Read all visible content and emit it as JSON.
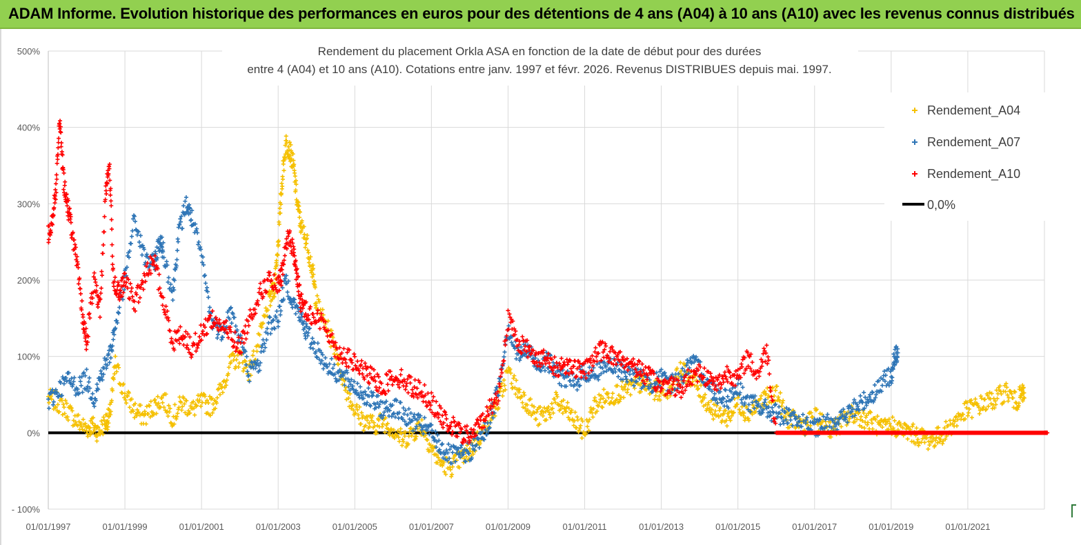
{
  "banner": {
    "title": "ADAM Informe. Evolution historique des performances en euros pour des détentions de 4 ans (A04) à 10 ans (A10) avec les revenus connus distribués"
  },
  "chart_data": {
    "type": "scatter",
    "title_line1": "Rendement du placement Orkla ASA en fonction de la date de début pour des durées",
    "title_line2": "entre 4 (A04) et 10 ans (A10).  Cotations entre janv. 1997 et févr. 2026. Revenus DISTRIBUES depuis mai. 1997.",
    "xlabel": "",
    "ylabel": "",
    "x_range": [
      1997.0,
      2023.0
    ],
    "ylim": [
      -100,
      500
    ],
    "yticks": [
      -100,
      0,
      100,
      200,
      300,
      400,
      500
    ],
    "ytick_labels": [
      "- 100%",
      "0%",
      "100%",
      "200%",
      "300%",
      "400%",
      "500%"
    ],
    "xticks": [
      1997,
      1999,
      2001,
      2003,
      2005,
      2007,
      2009,
      2011,
      2013,
      2015,
      2017,
      2019,
      2021
    ],
    "xtick_labels": [
      "01/01/1997",
      "01/01/1999",
      "01/01/2001",
      "01/01/2003",
      "01/01/2005",
      "01/01/2007",
      "01/01/2009",
      "01/01/2011",
      "01/01/2013",
      "01/01/2015",
      "01/01/2017",
      "01/01/2019",
      "01/01/2021"
    ],
    "grid": true,
    "legend_position": "top-right",
    "series": [
      {
        "name": "Rendement_A04",
        "color": "#f5c000",
        "marker": "plus",
        "x": [
          1997.0,
          1997.25,
          1997.5,
          1997.75,
          1998.0,
          1998.15,
          1998.3,
          1998.5,
          1998.6,
          1998.75,
          1999.0,
          1999.25,
          1999.5,
          1999.75,
          2000.0,
          2000.25,
          2000.5,
          2000.75,
          2001.0,
          2001.25,
          2001.5,
          2001.75,
          2002.0,
          2002.25,
          2002.5,
          2002.75,
          2002.9,
          2003.0,
          2003.1,
          2003.2,
          2003.3,
          2003.4,
          2003.5,
          2003.6,
          2003.75,
          2003.9,
          2004.0,
          2004.25,
          2004.5,
          2004.75,
          2005.0,
          2005.25,
          2005.5,
          2005.75,
          2006.0,
          2006.25,
          2006.5,
          2006.75,
          2007.0,
          2007.25,
          2007.5,
          2007.75,
          2008.0,
          2008.25,
          2008.5,
          2008.75,
          2009.0,
          2009.25,
          2009.5,
          2009.75,
          2010.0,
          2010.25,
          2010.5,
          2010.75,
          2011.0,
          2011.25,
          2011.5,
          2011.75,
          2012.0,
          2012.25,
          2012.5,
          2012.75,
          2013.0,
          2013.25,
          2013.5,
          2013.75,
          2014.0,
          2014.25,
          2014.5,
          2014.75,
          2015.0,
          2015.25,
          2015.5,
          2015.75,
          2016.0,
          2016.25,
          2016.5,
          2016.75,
          2017.0,
          2017.25,
          2017.5,
          2017.75,
          2018.0,
          2018.25,
          2018.5,
          2018.75,
          2019.0,
          2019.25,
          2019.5,
          2019.75,
          2020.0,
          2020.25,
          2020.5,
          2020.75,
          2021.0,
          2021.25,
          2021.5,
          2021.75,
          2022.0,
          2022.25,
          2022.4
        ],
        "y": [
          45,
          40,
          30,
          15,
          5,
          10,
          0,
          15,
          20,
          90,
          50,
          30,
          20,
          35,
          45,
          20,
          40,
          30,
          40,
          35,
          55,
          90,
          100,
          80,
          120,
          170,
          190,
          250,
          330,
          380,
          370,
          350,
          300,
          270,
          250,
          210,
          170,
          140,
          110,
          60,
          30,
          15,
          10,
          15,
          5,
          -10,
          0,
          10,
          -20,
          -40,
          -45,
          -35,
          -25,
          -5,
          20,
          40,
          80,
          55,
          40,
          20,
          25,
          40,
          30,
          15,
          0,
          35,
          45,
          50,
          55,
          60,
          65,
          55,
          55,
          60,
          80,
          75,
          55,
          35,
          25,
          20,
          40,
          25,
          35,
          45,
          55,
          20,
          15,
          10,
          20,
          10,
          5,
          15,
          25,
          20,
          15,
          5,
          10,
          5,
          0,
          -5,
          -10,
          -5,
          5,
          20,
          30,
          35,
          40,
          45,
          55,
          40,
          50
        ]
      },
      {
        "name": "Rendement_A07",
        "color": "#2e75b6",
        "marker": "plus",
        "x": [
          1997.0,
          1997.25,
          1997.5,
          1997.75,
          1998.0,
          1998.2,
          1998.4,
          1998.6,
          1998.75,
          1999.0,
          1999.25,
          1999.5,
          1999.75,
          1999.9,
          2000.0,
          2000.25,
          2000.4,
          2000.6,
          2000.75,
          2001.0,
          2001.25,
          2001.5,
          2001.75,
          2002.0,
          2002.25,
          2002.5,
          2002.75,
          2003.0,
          2003.2,
          2003.4,
          2003.6,
          2003.75,
          2004.0,
          2004.25,
          2004.5,
          2004.75,
          2005.0,
          2005.25,
          2005.5,
          2005.75,
          2006.0,
          2006.25,
          2006.5,
          2006.75,
          2007.0,
          2007.25,
          2007.5,
          2007.75,
          2008.0,
          2008.25,
          2008.5,
          2008.75,
          2009.0,
          2009.25,
          2009.5,
          2009.75,
          2010.0,
          2010.25,
          2010.5,
          2010.75,
          2011.0,
          2011.25,
          2011.5,
          2011.75,
          2012.0,
          2012.25,
          2012.5,
          2012.75,
          2013.0,
          2013.25,
          2013.5,
          2013.75,
          2014.0,
          2014.25,
          2014.5,
          2014.75,
          2015.0,
          2015.25,
          2015.5,
          2015.75,
          2016.0,
          2016.25,
          2016.5,
          2016.75,
          2017.0,
          2017.25,
          2017.5,
          2017.75,
          2018.0,
          2018.25,
          2018.5,
          2018.75,
          2019.0,
          2019.1
        ],
        "y": [
          40,
          55,
          70,
          60,
          70,
          45,
          80,
          100,
          140,
          200,
          280,
          230,
          220,
          250,
          240,
          180,
          260,
          300,
          280,
          230,
          150,
          130,
          160,
          120,
          80,
          90,
          140,
          150,
          200,
          170,
          150,
          130,
          110,
          90,
          80,
          70,
          60,
          50,
          40,
          30,
          35,
          25,
          15,
          10,
          0,
          -20,
          -30,
          -30,
          -25,
          -10,
          10,
          60,
          140,
          100,
          110,
          90,
          95,
          80,
          70,
          65,
          80,
          75,
          90,
          85,
          80,
          75,
          70,
          65,
          70,
          65,
          70,
          90,
          85,
          60,
          50,
          45,
          60,
          40,
          35,
          30,
          25,
          20,
          15,
          10,
          5,
          10,
          15,
          20,
          30,
          40,
          50,
          65,
          75,
          100
        ]
      },
      {
        "name": "Rendement_A10",
        "color": "#ff0000",
        "marker": "plus",
        "x": [
          1997.0,
          1997.1,
          1997.2,
          1997.3,
          1997.4,
          1997.5,
          1997.6,
          1997.75,
          1997.9,
          1998.0,
          1998.2,
          1998.35,
          1998.5,
          1998.6,
          1998.7,
          1998.85,
          1999.0,
          1999.25,
          1999.5,
          1999.75,
          2000.0,
          2000.25,
          2000.5,
          2000.75,
          2001.0,
          2001.25,
          2001.5,
          2001.75,
          2002.0,
          2002.25,
          2002.5,
          2002.75,
          2003.0,
          2003.1,
          2003.25,
          2003.4,
          2003.5,
          2003.6,
          2003.75,
          2004.0,
          2004.25,
          2004.5,
          2004.75,
          2005.0,
          2005.25,
          2005.5,
          2005.75,
          2006.0,
          2006.25,
          2006.5,
          2006.75,
          2007.0,
          2007.25,
          2007.5,
          2007.75,
          2008.0,
          2008.25,
          2008.5,
          2008.75,
          2009.0,
          2009.25,
          2009.5,
          2009.75,
          2010.0,
          2010.25,
          2010.5,
          2010.75,
          2011.0,
          2011.25,
          2011.5,
          2011.75,
          2012.0,
          2012.25,
          2012.5,
          2012.75,
          2013.0,
          2013.25,
          2013.5,
          2013.75,
          2014.0,
          2014.25,
          2014.5,
          2014.75,
          2015.0,
          2015.25,
          2015.5,
          2015.75,
          2016.0,
          2016.25,
          2016.5,
          2016.75,
          2017.0,
          2017.25,
          2017.5,
          2017.75,
          2018.0,
          2018.25,
          2018.5,
          2018.75,
          2019.0,
          2019.25,
          2019.5,
          2019.75,
          2020.0,
          2020.25,
          2020.5,
          2020.75,
          2021.0,
          2021.25,
          2021.5,
          2021.75,
          2022.0,
          2022.25,
          2022.5,
          2022.75,
          2023.0
        ],
        "y": [
          260,
          280,
          320,
          410,
          330,
          300,
          270,
          220,
          150,
          120,
          200,
          160,
          320,
          350,
          200,
          180,
          200,
          170,
          200,
          230,
          170,
          120,
          130,
          110,
          130,
          150,
          140,
          130,
          110,
          150,
          180,
          200,
          190,
          210,
          260,
          240,
          200,
          170,
          160,
          150,
          140,
          110,
          100,
          90,
          80,
          70,
          60,
          75,
          70,
          60,
          55,
          40,
          20,
          10,
          0,
          -5,
          10,
          30,
          50,
          150,
          120,
          110,
          100,
          95,
          85,
          90,
          85,
          80,
          100,
          110,
          100,
          95,
          90,
          80,
          70,
          60,
          65,
          55,
          75,
          80,
          70,
          65,
          80,
          70,
          100,
          75,
          110,
          0,
          0,
          0,
          0,
          0,
          0,
          0,
          0,
          0,
          0,
          0,
          0,
          0,
          0,
          0,
          0,
          0,
          0,
          0,
          0,
          0,
          0,
          0,
          0,
          0,
          0,
          0,
          0,
          0
        ]
      }
    ],
    "reference_line": {
      "name": "0,0%",
      "value": 0,
      "color": "#000000"
    }
  }
}
